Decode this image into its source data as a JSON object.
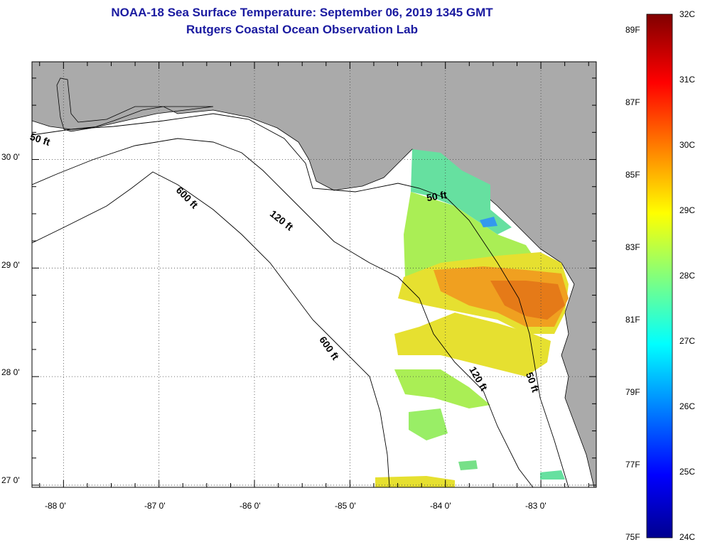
{
  "title": {
    "line1": "NOAA-18 Sea Surface Temperature:  September 06, 2019 1345 GMT",
    "line2": "Rutgers Coastal Ocean Observation Lab"
  },
  "map": {
    "lon_ticks": [
      -88,
      -87,
      -86,
      -85,
      -84,
      -83
    ],
    "lon_labels": [
      "-88 0'",
      "-87 0'",
      "-86 0'",
      "-85 0'",
      "-84 0'",
      "-83 0'"
    ],
    "lat_ticks": [
      27,
      28,
      29,
      30
    ],
    "lat_labels": [
      "27 0'",
      "28 0'",
      "29 0'",
      "30 0'"
    ],
    "contour_labels": [
      "50 ft",
      "600 ft",
      "120 ft",
      "50 ft",
      "600 ft",
      "120 ft",
      "50 ft"
    ],
    "colors": {
      "land": "#aaaaaa",
      "water": "#ffffff"
    }
  },
  "colorbar": {
    "celsius_labels": [
      "32C",
      "31C",
      "30C",
      "29C",
      "28C",
      "27C",
      "26C",
      "25C",
      "24C"
    ],
    "fahrenheit_labels": [
      "89F",
      "87F",
      "85F",
      "83F",
      "81F",
      "79F",
      "77F",
      "75F"
    ],
    "range_c": [
      24,
      32
    ],
    "colormap": "jet"
  }
}
